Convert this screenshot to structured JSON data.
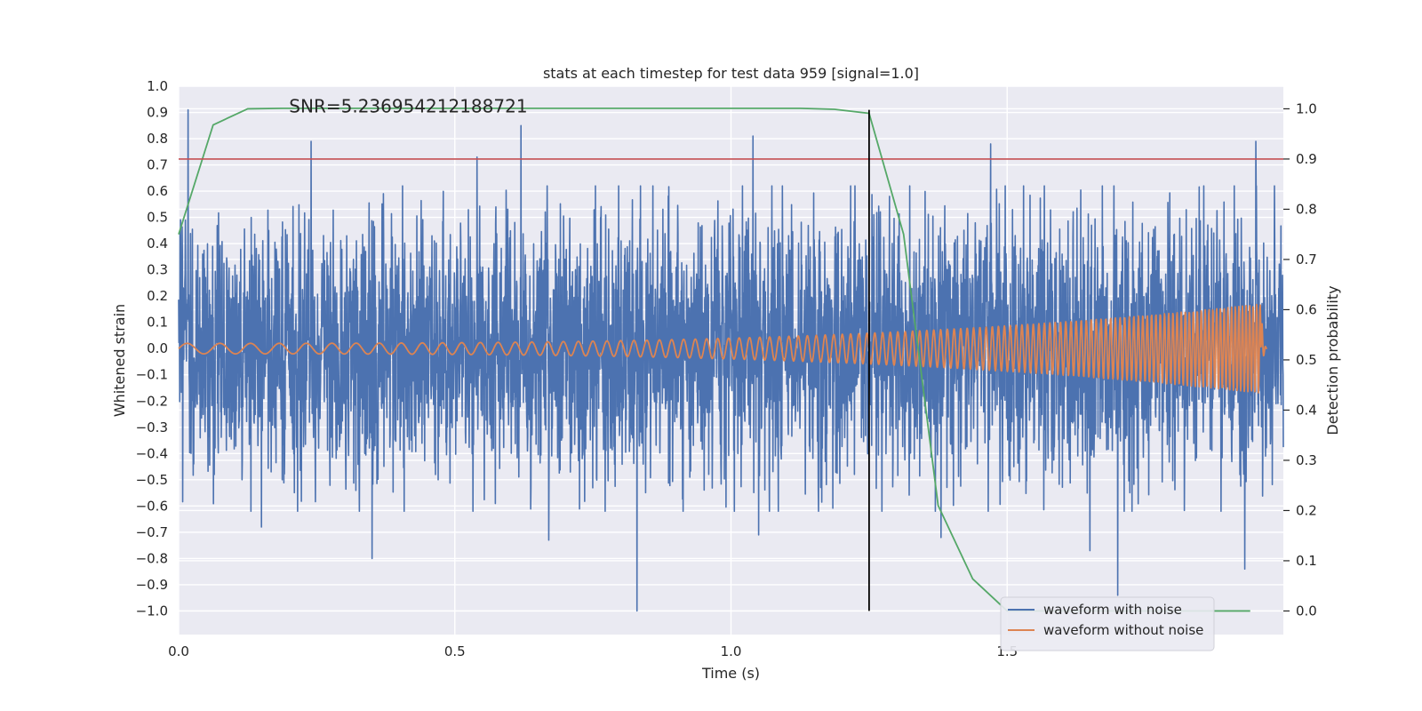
{
  "chart_data": {
    "type": "line",
    "title": "stats at each timestep for test data 959 [signal=1.0]",
    "annotation": "SNR=5.236954212188721",
    "xlabel": "Time (s)",
    "ylabel_left": "Whitened strain",
    "ylabel_right": "Detection probability",
    "xlim": [
      0.0,
      2.0
    ],
    "ylim_left": [
      -1.09,
      1.0
    ],
    "ylim_right": [
      -0.047,
      1.045
    ],
    "x_ticks": [
      0.0,
      0.5,
      1.0,
      1.5
    ],
    "x_tick_labels": [
      "0.0",
      "0.5",
      "1.0",
      "1.5"
    ],
    "y_left_ticks": [
      -1.0,
      -0.9,
      -0.8,
      -0.7,
      -0.6,
      -0.5,
      -0.4,
      -0.3,
      -0.2,
      -0.1,
      0.0,
      0.1,
      0.2,
      0.3,
      0.4,
      0.5,
      0.6,
      0.7,
      0.8,
      0.9,
      1.0
    ],
    "y_left_tick_labels": [
      "−1.0",
      "−0.9",
      "−0.8",
      "−0.7",
      "−0.6",
      "−0.5",
      "−0.4",
      "−0.3",
      "−0.2",
      "−0.1",
      "0.0",
      "0.1",
      "0.2",
      "0.3",
      "0.4",
      "0.5",
      "0.6",
      "0.7",
      "0.8",
      "0.9",
      "1.0"
    ],
    "y_right_ticks": [
      0.0,
      0.1,
      0.2,
      0.3,
      0.4,
      0.5,
      0.6,
      0.7,
      0.8,
      0.9,
      1.0
    ],
    "y_right_tick_labels": [
      "0.0",
      "0.1",
      "0.2",
      "0.3",
      "0.4",
      "0.5",
      "0.6",
      "0.7",
      "0.8",
      "0.9",
      "1.0"
    ],
    "grid": true,
    "legend_position": "lower-right",
    "series": [
      {
        "name": "waveform with noise",
        "axis": "left",
        "color": "#4c72b0",
        "noise_std": 0.25,
        "noise_seed": 959,
        "x_range": [
          0.0,
          2.0
        ],
        "spikes": [
          {
            "x": 0.017,
            "y": 0.91
          },
          {
            "x": 0.24,
            "y": 0.79
          },
          {
            "x": 0.54,
            "y": 0.73
          },
          {
            "x": 0.62,
            "y": 0.85
          },
          {
            "x": 1.04,
            "y": 0.81
          },
          {
            "x": 1.47,
            "y": 0.78
          },
          {
            "x": 1.95,
            "y": 0.79
          },
          {
            "x": 0.83,
            "y": -1.0
          },
          {
            "x": 1.7,
            "y": -0.94
          },
          {
            "x": 0.35,
            "y": -0.8
          },
          {
            "x": 0.67,
            "y": -0.73
          },
          {
            "x": 1.05,
            "y": -0.71
          },
          {
            "x": 0.15,
            "y": -0.68
          },
          {
            "x": 1.93,
            "y": -0.84
          },
          {
            "x": 1.38,
            "y": -0.72
          },
          {
            "x": 1.65,
            "y": -0.77
          }
        ]
      },
      {
        "name": "waveform without noise",
        "axis": "left",
        "color": "#dd8452",
        "model": "chirp",
        "x_range": [
          0.0,
          1.97
        ],
        "amplitude_start": 0.02,
        "amplitude_end": 0.17,
        "frequency_start_hz": 16,
        "frequency_end_hz": 160,
        "merger_time": 1.96
      },
      {
        "axis": "right",
        "color": "#55a868",
        "x": [
          0.0,
          0.0625,
          0.125,
          0.1875,
          0.25,
          0.5,
          0.75,
          1.0,
          1.125,
          1.1875,
          1.25,
          1.3125,
          1.375,
          1.4375,
          1.5,
          1.5625,
          1.625,
          1.75,
          1.875,
          1.94
        ],
        "values": [
          0.75,
          0.968,
          1.0,
          1.001,
          1.001,
          1.001,
          1.001,
          1.001,
          1.001,
          0.999,
          0.991,
          0.75,
          0.21,
          0.064,
          0.0,
          0.0,
          0.0,
          0.0,
          0.0,
          0.0
        ]
      }
    ],
    "reference_lines": [
      {
        "orientation": "horizontal",
        "axis": "right",
        "value": 0.9,
        "color": "#c44e52"
      },
      {
        "orientation": "vertical",
        "value": 1.25,
        "y_range_left": [
          -1.0,
          0.91
        ],
        "color": "#000000"
      }
    ]
  }
}
